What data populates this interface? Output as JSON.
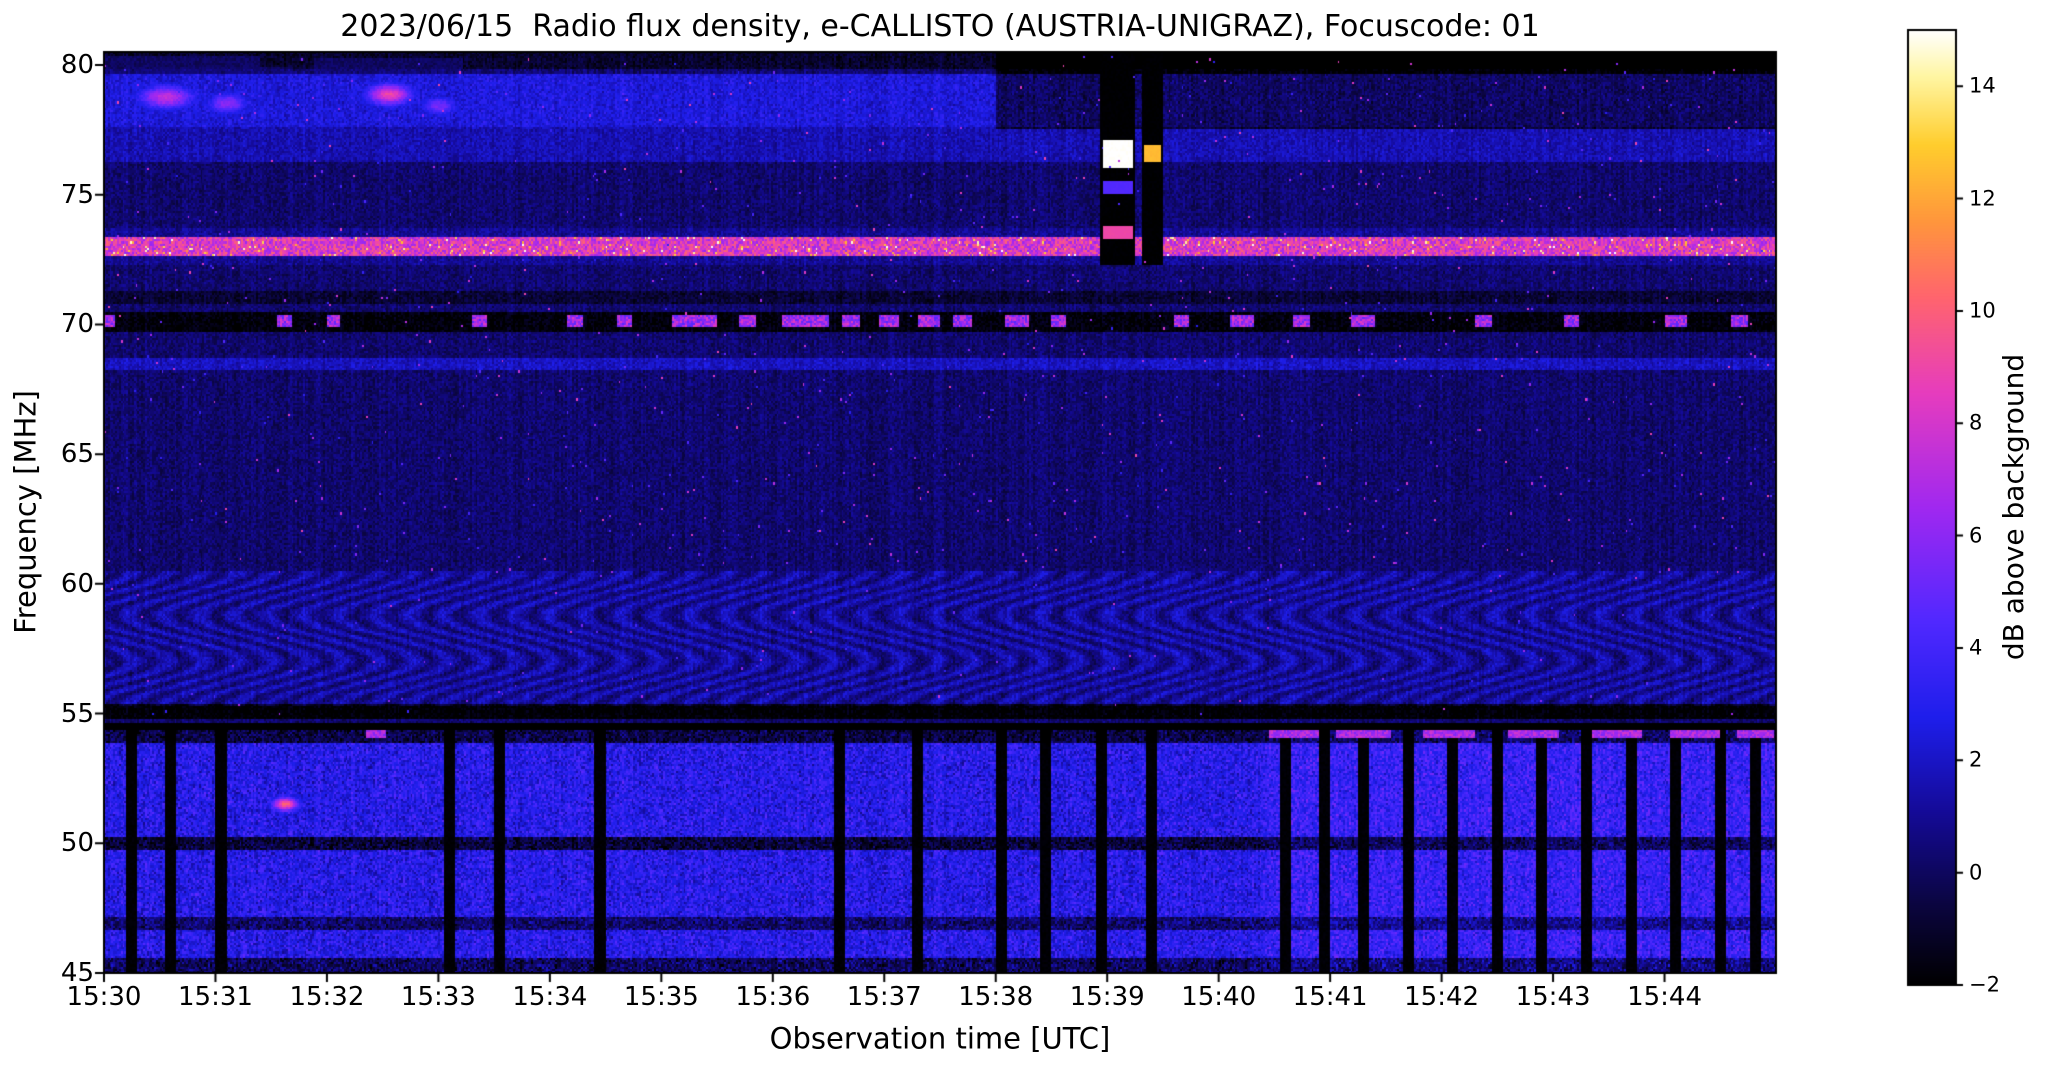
{
  "chart_data": {
    "type": "heatmap",
    "title": "2023/06/15  Radio flux density, e-CALLISTO (AUSTRIA-UNIGRAZ), Focuscode: 01",
    "xlabel": "Observation time [UTC]",
    "ylabel": "Frequency [MHz]",
    "x_range_utc": [
      "15:30",
      "15:45"
    ],
    "x_ticks": [
      "15:30",
      "15:31",
      "15:32",
      "15:33",
      "15:34",
      "15:35",
      "15:36",
      "15:37",
      "15:38",
      "15:39",
      "15:40",
      "15:41",
      "15:42",
      "15:43",
      "15:44"
    ],
    "y_range_mhz": [
      45,
      80.5
    ],
    "y_ticks": [
      45,
      50,
      55,
      60,
      65,
      70,
      75,
      80
    ],
    "colorbar": {
      "label": "dB above background",
      "range": [
        -2,
        15
      ],
      "ticks": [
        -2,
        0,
        2,
        4,
        6,
        8,
        10,
        12,
        14
      ]
    },
    "colormap": {
      "name": "gnuplot2-like (black-blue-violet-magenta-orange-yellow-white)",
      "stops": [
        {
          "p": 0.0,
          "c": [
            0,
            0,
            0
          ]
        },
        {
          "p": 0.08,
          "c": [
            10,
            5,
            60
          ]
        },
        {
          "p": 0.18,
          "c": [
            20,
            10,
            150
          ]
        },
        {
          "p": 0.28,
          "c": [
            30,
            30,
            235
          ]
        },
        {
          "p": 0.38,
          "c": [
            80,
            40,
            255
          ]
        },
        {
          "p": 0.5,
          "c": [
            160,
            40,
            240
          ]
        },
        {
          "p": 0.62,
          "c": [
            230,
            60,
            190
          ]
        },
        {
          "p": 0.72,
          "c": [
            255,
            100,
            110
          ]
        },
        {
          "p": 0.8,
          "c": [
            255,
            150,
            60
          ]
        },
        {
          "p": 0.88,
          "c": [
            255,
            205,
            45
          ]
        },
        {
          "p": 0.95,
          "c": [
            255,
            245,
            160
          ]
        },
        {
          "p": 1.0,
          "c": [
            255,
            255,
            255
          ]
        }
      ]
    },
    "background_level_db": 0.3,
    "features": [
      {
        "name": "lower-broadband-rfi-band",
        "kind": "band",
        "f": [
          45.0,
          54.35
        ],
        "add": 2.1,
        "noise": 2.4
      },
      {
        "name": "lower-band-right-enhancement",
        "kind": "bandx",
        "f": [
          45.0,
          54.35
        ],
        "t": [
          10.4,
          15.0
        ],
        "add": 0.7
      },
      {
        "name": "dark-line-50mhz",
        "kind": "band",
        "f": [
          49.75,
          50.2
        ],
        "add": -3.6
      },
      {
        "name": "dark-line-47mhz",
        "kind": "band",
        "f": [
          46.7,
          47.1
        ],
        "add": -2.6
      },
      {
        "name": "bottom-edge-dark-row",
        "kind": "band",
        "f": [
          45.0,
          45.55
        ],
        "add": -3.2,
        "noise": 1.5
      },
      {
        "name": "blanking-stripes",
        "kind": "vstripes",
        "f": [
          45.0,
          54.4
        ],
        "set": -1.9,
        "w": 0.09,
        "t": [
          0.25,
          0.6,
          1.05,
          3.1,
          3.55,
          4.45,
          6.6,
          7.3,
          8.05,
          8.45,
          8.95,
          9.4,
          10.6,
          10.95,
          11.3,
          11.7,
          12.1,
          12.5,
          12.9,
          13.3,
          13.7,
          14.1,
          14.5,
          14.82
        ]
      },
      {
        "name": "dark-54mhz-band",
        "kind": "band",
        "f": [
          53.95,
          54.55
        ],
        "add": -3.4
      },
      {
        "name": "bright-54mhz-dashes",
        "kind": "dashes",
        "f": [
          54.05,
          54.35
        ],
        "set": 5.5,
        "vary": 2.5,
        "segments": [
          [
            2.35,
            2.52
          ],
          [
            10.45,
            10.9
          ],
          [
            11.05,
            11.55
          ],
          [
            11.85,
            12.3
          ],
          [
            12.6,
            13.05
          ],
          [
            13.35,
            13.8
          ],
          [
            14.05,
            14.5
          ],
          [
            14.65,
            14.97
          ]
        ]
      },
      {
        "name": "dark-55mhz-line",
        "kind": "band",
        "f": [
          54.85,
          55.3
        ],
        "add": -2.4
      },
      {
        "name": "ionosonde-ripple-region",
        "kind": "ripple",
        "f": [
          55.35,
          60.45
        ],
        "add": 0.85,
        "amp": 0.85
      },
      {
        "name": "line-68mhz",
        "kind": "band",
        "f": [
          68.25,
          68.65
        ],
        "add": 1.6
      },
      {
        "name": "dark-70mhz-band",
        "kind": "band",
        "f": [
          69.75,
          70.45
        ],
        "add": -2.1
      },
      {
        "name": "dashes-70mhz",
        "kind": "dashes",
        "f": [
          69.95,
          70.35
        ],
        "set": 4.5,
        "vary": 4.0,
        "segments": [
          [
            0.0,
            0.1
          ],
          [
            1.55,
            1.68
          ],
          [
            2.0,
            2.1
          ],
          [
            3.3,
            3.42
          ],
          [
            4.15,
            4.3
          ],
          [
            4.6,
            4.72
          ],
          [
            5.1,
            5.5
          ],
          [
            5.7,
            5.85
          ],
          [
            6.1,
            6.5
          ],
          [
            6.62,
            6.78
          ],
          [
            6.95,
            7.12
          ],
          [
            7.3,
            7.5
          ],
          [
            7.62,
            7.78
          ],
          [
            8.1,
            8.3
          ],
          [
            8.5,
            8.62
          ],
          [
            9.6,
            9.72
          ],
          [
            10.1,
            10.3
          ],
          [
            10.68,
            10.8
          ],
          [
            11.2,
            11.4
          ],
          [
            12.3,
            12.45
          ],
          [
            13.1,
            13.22
          ],
          [
            14.0,
            14.2
          ],
          [
            14.6,
            14.75
          ]
        ]
      },
      {
        "name": "dark-71mhz-line",
        "kind": "band",
        "f": [
          70.85,
          71.25
        ],
        "add": -1.1
      },
      {
        "name": "strong-73mhz-rfi-line",
        "kind": "hline",
        "f": [
          72.7,
          73.3
        ],
        "base": 5.5,
        "noise": 4.0,
        "spike": 0.05,
        "spikeAdd": 5
      },
      {
        "name": "glow-73mhz",
        "kind": "band",
        "f": [
          72.35,
          73.65
        ],
        "add": 0.7
      },
      {
        "name": "band-76-77mhz",
        "kind": "band",
        "f": [
          76.3,
          77.55
        ],
        "add": 1.3
      },
      {
        "name": "band-78-79mhz",
        "kind": "band",
        "f": [
          77.6,
          79.6
        ],
        "add": 2.0,
        "noise": 0.8
      },
      {
        "name": "top-right-darkening",
        "kind": "bandx",
        "f": [
          77.55,
          80.5
        ],
        "t": [
          8.0,
          15.0
        ],
        "add": -2.4
      },
      {
        "name": "top-edge-dark",
        "kind": "band",
        "f": [
          79.85,
          80.5
        ],
        "add": -1.3
      },
      {
        "name": "blob-78-8mhz",
        "kind": "blob",
        "t": 0.55,
        "f": 78.8,
        "wt": 0.28,
        "wf": 0.5,
        "v": 7.5
      },
      {
        "name": "blob-78-5mhz",
        "kind": "blob",
        "t": 1.1,
        "f": 78.55,
        "wt": 0.2,
        "wf": 0.45,
        "v": 6.0
      },
      {
        "name": "blob-orange-78-9mhz",
        "kind": "blob",
        "t": 2.55,
        "f": 78.9,
        "wt": 0.22,
        "wf": 0.45,
        "v": 9.0
      },
      {
        "name": "blob-78-4mhz",
        "kind": "blob",
        "t": 3.0,
        "f": 78.45,
        "wt": 0.18,
        "wf": 0.4,
        "v": 5.5
      },
      {
        "name": "blob-51-5mhz",
        "kind": "blob",
        "t": 1.62,
        "f": 51.55,
        "wt": 0.13,
        "wf": 0.3,
        "v": 10.0
      },
      {
        "name": "cal-column-a",
        "kind": "vcol",
        "t": [
          8.95,
          9.25
        ],
        "f": [
          72.3,
          80.5
        ],
        "set": -1.95
      },
      {
        "name": "cal-column-b",
        "kind": "vcol",
        "t": [
          9.32,
          9.5
        ],
        "f": [
          72.3,
          80.5
        ],
        "set": -1.95
      },
      {
        "name": "cal-white-blob-a",
        "kind": "vcol",
        "t": [
          8.98,
          9.22
        ],
        "f": [
          76.1,
          77.05
        ],
        "set": 15.0
      },
      {
        "name": "cal-white-blob-b",
        "kind": "vcol",
        "t": [
          9.34,
          9.48
        ],
        "f": [
          76.3,
          76.9
        ],
        "set": 12.5
      },
      {
        "name": "cal-blue-dash",
        "kind": "vcol",
        "t": [
          8.98,
          9.22
        ],
        "f": [
          75.05,
          75.5
        ],
        "set": 4.5
      },
      {
        "name": "cal-orange-dash",
        "kind": "vcol",
        "t": [
          8.98,
          9.22
        ],
        "f": [
          73.3,
          73.75
        ],
        "set": 9.0
      },
      {
        "name": "upper-speckles",
        "kind": "speckles",
        "f": [
          60.5,
          80.3
        ],
        "density": 0.004,
        "v": [
          3.0,
          9.0
        ]
      },
      {
        "name": "mid-speckles",
        "kind": "speckles",
        "f": [
          55.0,
          60.5
        ],
        "density": 0.002,
        "v": [
          3.0,
          8.0
        ]
      }
    ]
  }
}
